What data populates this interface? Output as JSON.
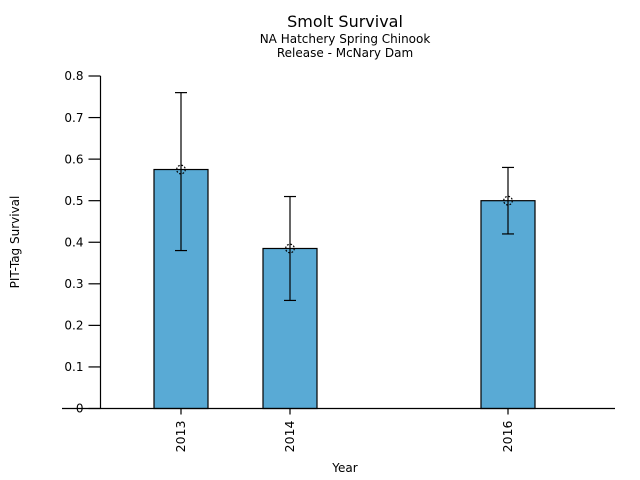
{
  "chart_data": {
    "type": "bar",
    "title": "Smolt Survival",
    "subtitle1": "NA Hatchery Spring Chinook",
    "subtitle2": "Release - McNary Dam",
    "xlabel": "Year",
    "ylabel": "PIT-Tag Survival",
    "categories": [
      "2013",
      "2014",
      "2016"
    ],
    "x_numeric": [
      2013,
      2014,
      2016
    ],
    "values": [
      0.575,
      0.385,
      0.5
    ],
    "error_low": [
      0.38,
      0.26,
      0.42
    ],
    "error_high": [
      0.76,
      0.51,
      0.58
    ],
    "ylim": [
      0,
      0.8
    ],
    "ytick_values": [
      0,
      0.1,
      0.2,
      0.3,
      0.4,
      0.5,
      0.6,
      0.7,
      0.8
    ],
    "ytick_labels": [
      "0",
      "0.1",
      "0.2",
      "0.3",
      "0.4",
      "0.5",
      "0.6",
      "0.7",
      "0.8"
    ],
    "grid": false,
    "legend": "none",
    "marker": "open-circle-dotted",
    "bar_color": "#59AAD5",
    "bar_edge_color": "#000000",
    "axis_color": "#000000",
    "background_color": "#ffffff"
  }
}
